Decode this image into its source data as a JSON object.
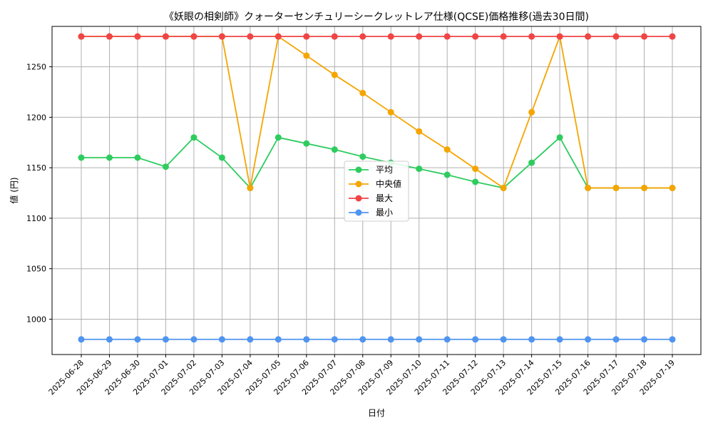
{
  "chart_data": {
    "type": "line",
    "title": "《妖眼の相剣師》クォーターセンチュリーシークレットレア仕様(QCSE)価格推移(過去30日間)",
    "xlabel": "日付",
    "ylabel": "値 (円)",
    "ylim": [
      965,
      1290
    ],
    "yticks": [
      1000,
      1050,
      1100,
      1150,
      1200,
      1250
    ],
    "grid": true,
    "legend_position": "center",
    "categories": [
      "2025-06-28",
      "2025-06-29",
      "2025-06-30",
      "2025-07-01",
      "2025-07-02",
      "2025-07-03",
      "2025-07-04",
      "2025-07-05",
      "2025-07-06",
      "2025-07-07",
      "2025-07-08",
      "2025-07-09",
      "2025-07-10",
      "2025-07-11",
      "2025-07-12",
      "2025-07-13",
      "2025-07-14",
      "2025-07-15",
      "2025-07-16",
      "2025-07-17",
      "2025-07-18",
      "2025-07-19"
    ],
    "series": [
      {
        "name": "平均",
        "color": "#2ecc5f",
        "values": [
          1160,
          1160,
          1160,
          1151,
          1180,
          1160,
          1130,
          1180,
          1174,
          1168,
          1161,
          1155,
          1149,
          1143,
          1136,
          1130,
          1155,
          1180,
          1130,
          1130,
          1130,
          1130
        ]
      },
      {
        "name": "中央値",
        "color": "#f5a500",
        "values": [
          1280,
          1280,
          1280,
          1280,
          1280,
          1280,
          1130,
          1280,
          1261,
          1242,
          1224,
          1205,
          1186,
          1168,
          1149,
          1130,
          1205,
          1280,
          1130,
          1130,
          1130,
          1130
        ]
      },
      {
        "name": "最大",
        "color": "#f04545",
        "values": [
          1280,
          1280,
          1280,
          1280,
          1280,
          1280,
          1280,
          1280,
          1280,
          1280,
          1280,
          1280,
          1280,
          1280,
          1280,
          1280,
          1280,
          1280,
          1280,
          1280,
          1280,
          1280
        ]
      },
      {
        "name": "最小",
        "color": "#4f94f0",
        "values": [
          980,
          980,
          980,
          980,
          980,
          980,
          980,
          980,
          980,
          980,
          980,
          980,
          980,
          980,
          980,
          980,
          980,
          980,
          980,
          980,
          980,
          980
        ]
      }
    ]
  }
}
